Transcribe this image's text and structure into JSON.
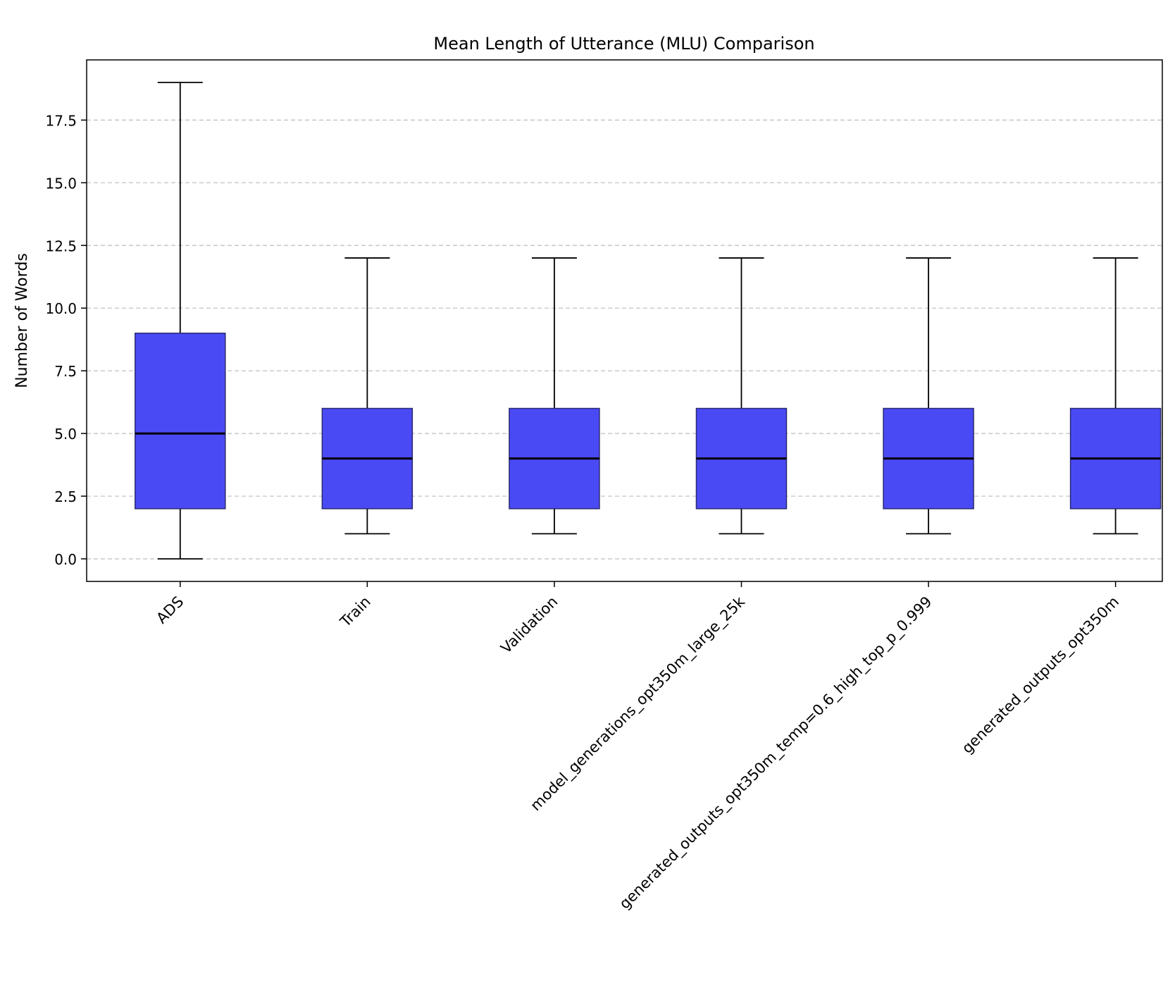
{
  "chart_data": {
    "type": "box",
    "title": "Mean Length of Utterance (MLU) Comparison",
    "xlabel": "",
    "ylabel": "Number of Words",
    "ylim": [
      -0.9,
      19.9
    ],
    "yticks": [
      0.0,
      2.5,
      5.0,
      7.5,
      10.0,
      12.5,
      15.0,
      17.5
    ],
    "ytick_labels": [
      "0.0",
      "2.5",
      "5.0",
      "7.5",
      "10.0",
      "12.5",
      "15.0",
      "17.5"
    ],
    "grid": "y-dashed",
    "categories": [
      "ADS",
      "Train",
      "Validation",
      "model_generations_opt350m_large_25k",
      "generated_outputs_opt350m_temp=0.6_high_top_p_0.999",
      "generated_outputs_opt350m"
    ],
    "boxes": [
      {
        "whislo": 0,
        "q1": 2,
        "median": 5,
        "q3": 9,
        "whishi": 19
      },
      {
        "whislo": 1,
        "q1": 2,
        "median": 4,
        "q3": 6,
        "whishi": 12
      },
      {
        "whislo": 1,
        "q1": 2,
        "median": 4,
        "q3": 6,
        "whishi": 12
      },
      {
        "whislo": 1,
        "q1": 2,
        "median": 4,
        "q3": 6,
        "whishi": 12
      },
      {
        "whislo": 1,
        "q1": 2,
        "median": 4,
        "q3": 6,
        "whishi": 12
      },
      {
        "whislo": 1,
        "q1": 2,
        "median": 4,
        "q3": 6,
        "whishi": 12
      }
    ],
    "box_color": "#4a4af5",
    "median_color": "#000000"
  }
}
